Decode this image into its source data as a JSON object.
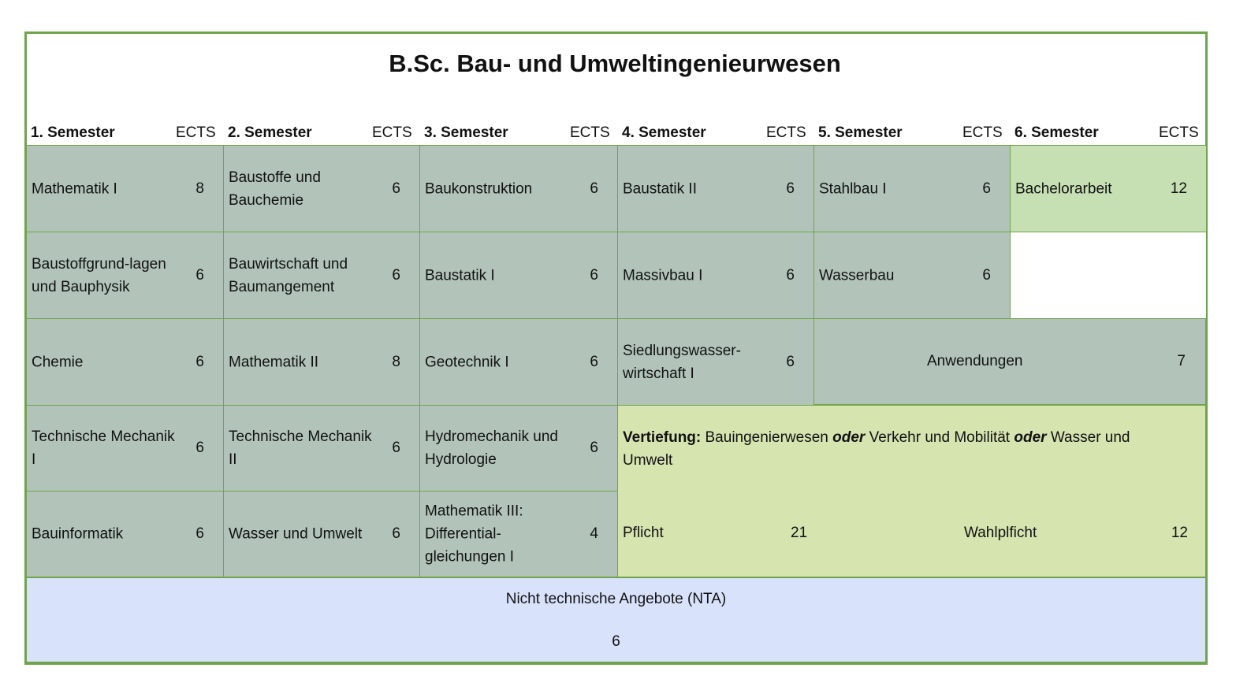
{
  "title": "B.Sc. Bau- und Umweltingenieurwesen",
  "headers": [
    {
      "semester": "1. Semester",
      "ects": "ECTS"
    },
    {
      "semester": "2. Semester",
      "ects": "ECTS"
    },
    {
      "semester": "3.  Semester",
      "ects": "ECTS"
    },
    {
      "semester": "4. Semester",
      "ects": "ECTS"
    },
    {
      "semester": "5. Semester",
      "ects": "ECTS"
    },
    {
      "semester": "6. Semester",
      "ects": "ECTS"
    }
  ],
  "columns": [
    [
      {
        "name": "Mathematik I",
        "ects": "8"
      },
      {
        "name": "Baustoffgrund-lagen und Bauphysik",
        "ects": "6"
      },
      {
        "name": "Chemie",
        "ects": "6"
      },
      {
        "name": "Technische Mechanik I",
        "ects": "6"
      },
      {
        "name": "Bauinformatik",
        "ects": "6"
      }
    ],
    [
      {
        "name": "Baustoffe und Bauchemie",
        "ects": "6"
      },
      {
        "name": "Bauwirtschaft und Baumangement",
        "ects": "6"
      },
      {
        "name": "Mathematik II",
        "ects": "8"
      },
      {
        "name": "Technische Mechanik II",
        "ects": "6"
      },
      {
        "name": "Wasser und Umwelt",
        "ects": "6"
      }
    ],
    [
      {
        "name": "Baukonstruktion",
        "ects": "6"
      },
      {
        "name": "Baustatik I",
        "ects": "6"
      },
      {
        "name": "Geotechnik I",
        "ects": "6"
      },
      {
        "name": "Hydromechanik und Hydrologie",
        "ects": "6"
      },
      {
        "name": "Mathematik III: Differential-gleichungen I",
        "ects": "4"
      }
    ],
    [
      {
        "name": "Baustatik II",
        "ects": "6"
      },
      {
        "name": "Massivbau I",
        "ects": "6"
      },
      {
        "name": "Siedlungswasser-wirtschaft I",
        "ects": "6"
      }
    ],
    [
      {
        "name": "Stahlbau I",
        "ects": "6"
      },
      {
        "name": "Wasserbau",
        "ects": "6"
      }
    ],
    [
      {
        "name": "Bachelorarbeit",
        "ects": "12"
      }
    ]
  ],
  "anwendungen": {
    "name": "Anwendungen",
    "ects": "7"
  },
  "vertiefung": {
    "label": "Vertiefung:",
    "opt1": " Bauingenierwesen ",
    "or1": "oder",
    "opt2": " Verkehr und Mobilität ",
    "or2": "oder",
    "opt3": " Wasser und Umwelt",
    "pflicht": "Pflicht",
    "pflicht_ects": "21",
    "wahlpflicht": "Wahlplficht",
    "wahlpflicht_ects": "12"
  },
  "nta": {
    "name": "Nicht technische Angebote (NTA)",
    "ects": "6"
  },
  "colors": {
    "border": "#70a44c",
    "module": "#b2c4b9",
    "thesis": "#c6e0b4",
    "specialization": "#d6e4b0",
    "nta": "#d9e2fb"
  }
}
